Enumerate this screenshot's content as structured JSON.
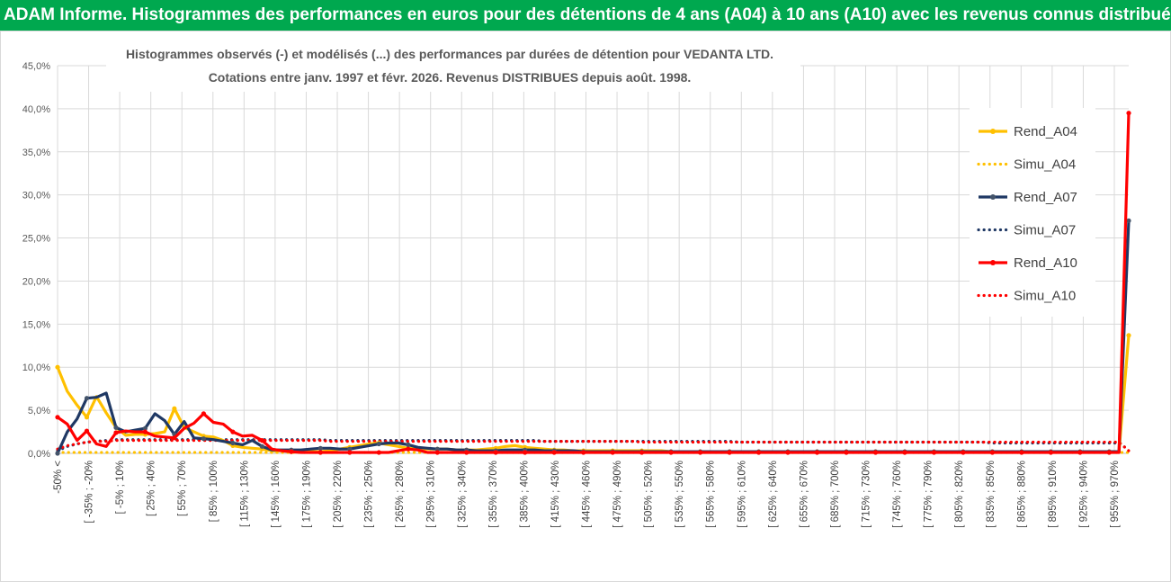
{
  "header": {
    "title": "ADAM Informe. Histogrammes des performances en euros pour des détentions de 4 ans (A04) à 10 ans (A10) avec les revenus connus distribués"
  },
  "chart_data": {
    "type": "line",
    "title": "Histogrammes observés (-) et modélisés (...) des performances par durées de détention pour VEDANTA LTD.",
    "subtitle": "Cotations entre janv. 1997 et févr. 2026. Revenus DISTRIBUES depuis août. 1998.",
    "ylim": [
      0,
      45
    ],
    "y_ticks": [
      "0,0%",
      "5,0%",
      "10,0%",
      "15,0%",
      "20,0%",
      "25,0%",
      "30,0%",
      "35,0%",
      "40,0%",
      "45,0%"
    ],
    "x_labels": [
      "-50% <",
      "[ -35% ; -20%",
      "[ -5% ; 10%",
      "[ 25% ; 40%",
      "[ 55% ; 70%",
      "[ 85% ; 100%",
      "[ 115% ; 130%",
      "[ 145% ; 160%",
      "[ 175% ; 190%",
      "[ 205% ; 220%",
      "[ 235% ; 250%",
      "[ 265% ; 280%",
      "[ 295% ; 310%",
      "[ 325% ; 340%",
      "[ 355% ; 370%",
      "[ 385% ; 400%",
      "[ 415% ; 430%",
      "[ 445% ; 460%",
      "[ 475% ; 490%",
      "[ 505% ; 520%",
      "[ 535% ; 550%",
      "[ 565% ; 580%",
      "[ 595% ; 610%",
      "[ 625% ; 640%",
      "[ 655% ; 670%",
      "[ 685% ; 700%",
      "[ 715% ; 730%",
      "[ 745% ; 760%",
      "[ 775% ; 790%",
      "[ 805% ; 820%",
      "[ 835% ; 850%",
      "[ 865% ; 880%",
      "[ 895% ; 910%",
      "[ 925% ; 940%",
      "[ 955% ; 970%"
    ],
    "legend_position": "right",
    "grid": true,
    "series": [
      {
        "name": "Rend_A04",
        "style": "solid",
        "color": "#ffc000",
        "values": [
          10.0,
          7.2,
          5.6,
          4.2,
          6.6,
          4.7,
          3.0,
          2.1,
          2.2,
          2.2,
          2.3,
          2.5,
          5.2,
          3.0,
          2.5,
          2.0,
          1.9,
          1.5,
          0.9,
          0.7,
          0.6,
          0.5,
          0.3,
          0.3,
          0.2,
          0.2,
          0.2,
          0.2,
          0.3,
          0.5,
          0.7,
          0.9,
          1.1,
          1.2,
          1.0,
          0.8,
          0.6,
          0.5,
          0.5,
          0.5,
          0.5,
          0.4,
          0.4,
          0.4,
          0.5,
          0.6,
          0.8,
          0.9,
          0.7,
          0.6,
          0.5,
          0.4,
          0.4,
          0.3,
          0.3,
          0.3,
          0.3,
          0.3,
          0.3,
          0.3,
          0.3,
          0.3,
          0.3,
          0.2,
          0.2,
          0.2,
          0.2,
          0.2,
          0.2,
          0.2,
          0.2,
          0.2,
          0.2,
          0.2,
          0.2,
          0.2,
          0.2,
          0.2,
          0.2,
          0.2,
          0.2,
          0.2,
          0.2,
          0.2,
          0.2,
          0.2,
          0.2,
          0.2,
          0.2,
          0.2,
          0.2,
          0.2,
          0.2,
          0.2,
          0.2,
          0.2,
          0.2,
          0.2,
          0.2,
          0.2,
          0.2,
          0.2,
          0.2,
          0.2,
          0.2,
          0.2,
          0.2,
          0.2,
          0.2,
          0.2,
          13.7
        ]
      },
      {
        "name": "Simu_A04",
        "style": "dotted",
        "color": "#ffc000",
        "values": [
          0.1,
          0.1,
          0.1,
          0.1,
          0.1,
          0.1,
          0.1,
          0.1,
          0.1,
          0.1,
          0.1,
          0.1,
          0.1,
          0.1,
          0.1,
          0.1,
          0.1,
          0.1,
          0.1,
          0.1,
          0.1,
          0.1,
          0.1,
          0.1,
          0.1,
          0.1,
          0.1,
          0.1,
          0.1,
          0.1,
          0.1,
          0.1,
          0.1,
          0.1,
          0.1,
          0.1,
          0.1,
          0.1,
          0.1,
          0.1,
          0.1,
          0.1,
          0.1,
          0.1,
          0.1,
          0.1,
          0.1,
          0.1,
          0.1,
          0.1,
          0.1,
          0.1,
          0.1,
          0.1,
          0.1,
          0.1,
          0.1,
          0.1,
          0.1,
          0.1,
          0.1,
          0.1,
          0.1,
          0.1,
          0.1,
          0.1,
          0.1,
          0.1,
          0.1,
          0.1,
          0.1,
          0.1,
          0.1,
          0.1,
          0.1,
          0.1,
          0.1,
          0.1,
          0.1,
          0.1,
          0.1,
          0.1,
          0.1,
          0.1,
          0.1,
          0.1,
          0.1,
          0.1,
          0.1,
          0.1,
          0.1,
          0.1,
          0.1,
          0.1,
          0.1,
          0.1,
          0.1,
          0.1,
          0.1,
          0.1,
          0.1,
          0.1,
          0.1,
          0.1,
          0.1,
          0.1,
          0.1,
          0.1,
          0.1,
          0.1,
          0.1
        ]
      },
      {
        "name": "Rend_A07",
        "style": "solid",
        "color": "#1f3864",
        "values": [
          0.0,
          2.5,
          4.0,
          6.4,
          6.5,
          7.0,
          3.0,
          2.5,
          2.7,
          2.9,
          4.6,
          3.8,
          2.2,
          3.7,
          1.8,
          1.7,
          1.6,
          1.4,
          1.2,
          1.0,
          1.5,
          0.8,
          0.4,
          0.4,
          0.4,
          0.4,
          0.5,
          0.6,
          0.6,
          0.5,
          0.5,
          0.7,
          0.9,
          1.1,
          1.2,
          1.2,
          1.0,
          0.7,
          0.6,
          0.5,
          0.5,
          0.4,
          0.4,
          0.3,
          0.3,
          0.3,
          0.4,
          0.4,
          0.4,
          0.4,
          0.3,
          0.3,
          0.3,
          0.3,
          0.2,
          0.2,
          0.2,
          0.2,
          0.2,
          0.2,
          0.2,
          0.2,
          0.2,
          0.2,
          0.2,
          0.2,
          0.2,
          0.2,
          0.2,
          0.2,
          0.2,
          0.2,
          0.2,
          0.2,
          0.2,
          0.2,
          0.2,
          0.2,
          0.2,
          0.2,
          0.2,
          0.2,
          0.2,
          0.2,
          0.2,
          0.2,
          0.2,
          0.2,
          0.2,
          0.2,
          0.2,
          0.2,
          0.2,
          0.2,
          0.2,
          0.2,
          0.2,
          0.2,
          0.2,
          0.2,
          0.2,
          0.2,
          0.2,
          0.2,
          0.2,
          0.2,
          0.2,
          0.2,
          0.2,
          0.2,
          27.0
        ]
      },
      {
        "name": "Simu_A07",
        "style": "dotted",
        "color": "#1f3864",
        "values": [
          0.3,
          0.8,
          1.1,
          1.3,
          1.4,
          1.5,
          1.6,
          1.6,
          1.6,
          1.6,
          1.6,
          1.6,
          1.6,
          1.6,
          1.6,
          1.6,
          1.6,
          1.6,
          1.6,
          1.6,
          1.6,
          1.6,
          1.6,
          1.6,
          1.6,
          1.6,
          1.6,
          1.6,
          1.5,
          1.5,
          1.5,
          1.5,
          1.5,
          1.5,
          1.5,
          1.5,
          1.5,
          1.5,
          1.5,
          1.5,
          1.5,
          1.5,
          1.5,
          1.5,
          1.5,
          1.5,
          1.5,
          1.5,
          1.5,
          1.5,
          1.4,
          1.4,
          1.4,
          1.4,
          1.4,
          1.4,
          1.4,
          1.4,
          1.4,
          1.4,
          1.4,
          1.4,
          1.4,
          1.4,
          1.4,
          1.4,
          1.4,
          1.4,
          1.4,
          1.4,
          1.3,
          1.3,
          1.3,
          1.3,
          1.3,
          1.3,
          1.3,
          1.3,
          1.3,
          1.3,
          1.3,
          1.3,
          1.3,
          1.3,
          1.3,
          1.3,
          1.3,
          1.3,
          1.3,
          1.3,
          1.3,
          1.3,
          1.3,
          1.3,
          1.3,
          1.3,
          1.2,
          1.2,
          1.2,
          1.2,
          1.2,
          1.2,
          1.2,
          1.2,
          1.2,
          1.2,
          1.2,
          1.2,
          1.2,
          1.2,
          0.4
        ]
      },
      {
        "name": "Rend_A10",
        "style": "solid",
        "color": "#ff0000",
        "values": [
          4.2,
          3.4,
          1.5,
          2.6,
          1.1,
          0.8,
          2.4,
          2.6,
          2.5,
          2.5,
          2.0,
          1.9,
          1.8,
          2.9,
          3.5,
          4.6,
          3.6,
          3.4,
          2.5,
          2.0,
          2.1,
          1.5,
          0.5,
          0.3,
          0.2,
          0.1,
          0.1,
          0.1,
          0.1,
          0.1,
          0.1,
          0.1,
          0.1,
          0.1,
          0.1,
          0.3,
          0.5,
          0.4,
          0.1,
          0.1,
          0.1,
          0.1,
          0.1,
          0.1,
          0.1,
          0.1,
          0.1,
          0.1,
          0.1,
          0.1,
          0.1,
          0.1,
          0.1,
          0.1,
          0.1,
          0.1,
          0.1,
          0.1,
          0.1,
          0.1,
          0.1,
          0.1,
          0.1,
          0.1,
          0.1,
          0.1,
          0.1,
          0.1,
          0.1,
          0.1,
          0.1,
          0.1,
          0.1,
          0.1,
          0.1,
          0.1,
          0.1,
          0.1,
          0.1,
          0.1,
          0.1,
          0.1,
          0.1,
          0.1,
          0.1,
          0.1,
          0.1,
          0.1,
          0.1,
          0.1,
          0.1,
          0.1,
          0.1,
          0.1,
          0.1,
          0.1,
          0.1,
          0.1,
          0.1,
          0.1,
          0.1,
          0.1,
          0.1,
          0.1,
          0.1,
          0.1,
          0.1,
          0.1,
          0.1,
          0.1,
          39.5
        ]
      },
      {
        "name": "Simu_A10",
        "style": "dotted",
        "color": "#ff0000",
        "values": [
          0.5,
          0.9,
          1.1,
          1.3,
          1.4,
          1.4,
          1.5,
          1.5,
          1.5,
          1.5,
          1.5,
          1.5,
          1.5,
          1.5,
          1.5,
          1.5,
          1.5,
          1.5,
          1.5,
          1.5,
          1.5,
          1.5,
          1.5,
          1.5,
          1.5,
          1.5,
          1.5,
          1.5,
          1.4,
          1.4,
          1.4,
          1.4,
          1.4,
          1.4,
          1.4,
          1.4,
          1.4,
          1.4,
          1.4,
          1.4,
          1.4,
          1.4,
          1.4,
          1.4,
          1.4,
          1.4,
          1.4,
          1.4,
          1.4,
          1.4,
          1.4,
          1.4,
          1.4,
          1.4,
          1.4,
          1.4,
          1.4,
          1.4,
          1.4,
          1.4,
          1.3,
          1.3,
          1.3,
          1.3,
          1.3,
          1.3,
          1.3,
          1.3,
          1.3,
          1.3,
          1.3,
          1.3,
          1.3,
          1.3,
          1.3,
          1.3,
          1.3,
          1.3,
          1.3,
          1.3,
          1.3,
          1.3,
          1.3,
          1.3,
          1.3,
          1.3,
          1.3,
          1.3,
          1.3,
          1.3,
          1.3,
          1.3,
          1.3,
          1.3,
          1.3,
          1.3,
          1.3,
          1.3,
          1.3,
          1.3,
          1.3,
          1.3,
          1.3,
          1.3,
          1.3,
          1.3,
          1.3,
          1.3,
          1.3,
          1.3,
          0.3
        ]
      }
    ]
  }
}
